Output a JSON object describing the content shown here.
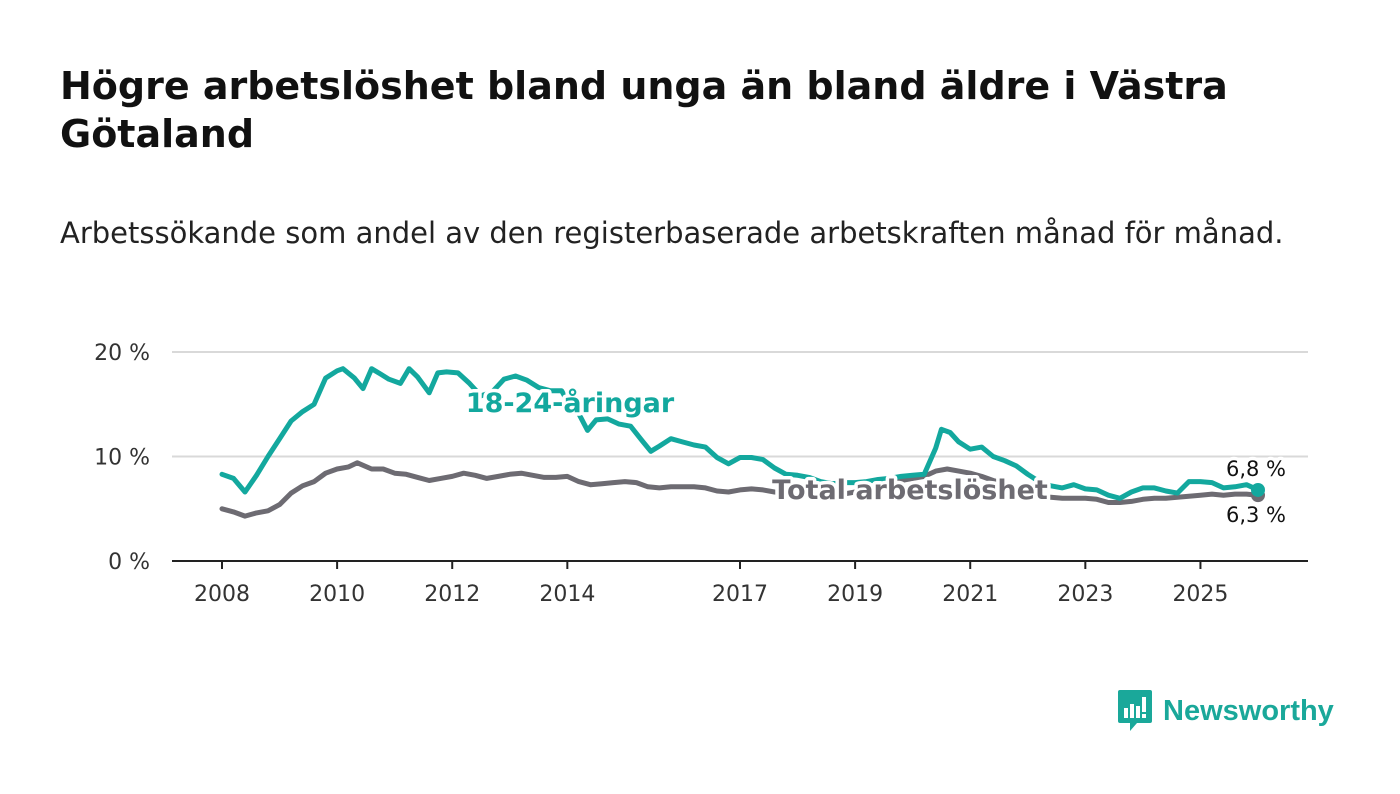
{
  "header": {
    "title": "Högre arbetslöshet bland unga än bland äldre i Västra Götaland",
    "subtitle": "Arbetssökande som andel av den registerbaserade arbetskraften månad för månad."
  },
  "brand": {
    "name": "Newsworthy",
    "icon": "bar-chart-speech-bubble-icon"
  },
  "colors": {
    "youth": "#13a89e",
    "total": "#6d6b72",
    "grid": "#d9d9d9",
    "axis": "#222222",
    "brand": "#1aa89a"
  },
  "chart_data": {
    "type": "line",
    "title": "Högre arbetslöshet bland unga än bland äldre i Västra Götaland",
    "subtitle": "Arbetssökande som andel av den registerbaserade arbetskraften månad för månad.",
    "xlabel": "",
    "ylabel": "",
    "x_range": [
      2008.0,
      2026.0
    ],
    "y_range": [
      0,
      20
    ],
    "y_ticks": [
      0,
      10,
      20
    ],
    "y_tick_labels": [
      "0 %",
      "10 %",
      "20 %"
    ],
    "x_ticks": [
      2008,
      2010,
      2012,
      2014,
      2017,
      2019,
      2021,
      2023,
      2025
    ],
    "x_tick_labels": [
      "2008",
      "2010",
      "2012",
      "2014",
      "2017",
      "2019",
      "2021",
      "2023",
      "2025"
    ],
    "grid": true,
    "series": [
      {
        "name": "18-24-åringar",
        "label": "18-24-åringar",
        "end_label": "6,8 %",
        "points": [
          [
            2008.0,
            8.3
          ],
          [
            2008.2,
            7.9
          ],
          [
            2008.4,
            6.6
          ],
          [
            2008.6,
            8.2
          ],
          [
            2008.8,
            10.0
          ],
          [
            2009.0,
            11.7
          ],
          [
            2009.2,
            13.4
          ],
          [
            2009.4,
            14.3
          ],
          [
            2009.6,
            15.0
          ],
          [
            2009.8,
            17.5
          ],
          [
            2010.0,
            18.2
          ],
          [
            2010.1,
            18.4
          ],
          [
            2010.3,
            17.5
          ],
          [
            2010.45,
            16.5
          ],
          [
            2010.6,
            18.4
          ],
          [
            2010.75,
            17.9
          ],
          [
            2010.9,
            17.4
          ],
          [
            2011.1,
            17.0
          ],
          [
            2011.25,
            18.4
          ],
          [
            2011.4,
            17.6
          ],
          [
            2011.6,
            16.1
          ],
          [
            2011.75,
            18.0
          ],
          [
            2011.9,
            18.1
          ],
          [
            2012.1,
            18.0
          ],
          [
            2012.3,
            17.0
          ],
          [
            2012.5,
            15.8
          ],
          [
            2012.7,
            16.2
          ],
          [
            2012.9,
            17.4
          ],
          [
            2013.1,
            17.7
          ],
          [
            2013.3,
            17.3
          ],
          [
            2013.5,
            16.6
          ],
          [
            2013.7,
            16.3
          ],
          [
            2013.9,
            16.3
          ],
          [
            2014.0,
            15.3
          ],
          [
            2014.2,
            14.1
          ],
          [
            2014.35,
            12.5
          ],
          [
            2014.5,
            13.5
          ],
          [
            2014.7,
            13.6
          ],
          [
            2014.9,
            13.1
          ],
          [
            2015.1,
            12.9
          ],
          [
            2015.3,
            11.5
          ],
          [
            2015.45,
            10.5
          ],
          [
            2015.6,
            11.0
          ],
          [
            2015.8,
            11.7
          ],
          [
            2016.0,
            11.4
          ],
          [
            2016.2,
            11.1
          ],
          [
            2016.4,
            10.9
          ],
          [
            2016.6,
            9.9
          ],
          [
            2016.8,
            9.3
          ],
          [
            2017.0,
            9.9
          ],
          [
            2017.2,
            9.9
          ],
          [
            2017.4,
            9.7
          ],
          [
            2017.6,
            8.9
          ],
          [
            2017.8,
            8.3
          ],
          [
            2018.0,
            8.2
          ],
          [
            2018.2,
            8.0
          ],
          [
            2018.4,
            7.6
          ],
          [
            2018.6,
            7.4
          ],
          [
            2018.8,
            7.5
          ],
          [
            2019.0,
            7.5
          ],
          [
            2019.2,
            7.6
          ],
          [
            2019.4,
            7.8
          ],
          [
            2019.6,
            7.9
          ],
          [
            2019.8,
            8.1
          ],
          [
            2020.0,
            8.2
          ],
          [
            2020.2,
            8.3
          ],
          [
            2020.4,
            10.8
          ],
          [
            2020.5,
            12.6
          ],
          [
            2020.65,
            12.3
          ],
          [
            2020.8,
            11.4
          ],
          [
            2021.0,
            10.7
          ],
          [
            2021.2,
            10.9
          ],
          [
            2021.4,
            10.0
          ],
          [
            2021.6,
            9.6
          ],
          [
            2021.8,
            9.1
          ],
          [
            2022.0,
            8.3
          ],
          [
            2022.2,
            7.6
          ],
          [
            2022.4,
            7.2
          ],
          [
            2022.6,
            7.0
          ],
          [
            2022.8,
            7.3
          ],
          [
            2023.0,
            6.9
          ],
          [
            2023.2,
            6.8
          ],
          [
            2023.4,
            6.3
          ],
          [
            2023.6,
            6.0
          ],
          [
            2023.8,
            6.6
          ],
          [
            2024.0,
            7.0
          ],
          [
            2024.2,
            7.0
          ],
          [
            2024.4,
            6.7
          ],
          [
            2024.6,
            6.5
          ],
          [
            2024.8,
            7.6
          ],
          [
            2025.0,
            7.6
          ],
          [
            2025.2,
            7.5
          ],
          [
            2025.4,
            7.0
          ],
          [
            2025.6,
            7.1
          ],
          [
            2025.8,
            7.3
          ],
          [
            2026.0,
            6.8
          ]
        ]
      },
      {
        "name": "Total arbetslöshet",
        "label": "Total arbetslöshet",
        "end_label": "6,3 %",
        "points": [
          [
            2008.0,
            5.0
          ],
          [
            2008.2,
            4.7
          ],
          [
            2008.4,
            4.3
          ],
          [
            2008.6,
            4.6
          ],
          [
            2008.8,
            4.8
          ],
          [
            2009.0,
            5.4
          ],
          [
            2009.2,
            6.5
          ],
          [
            2009.4,
            7.2
          ],
          [
            2009.6,
            7.6
          ],
          [
            2009.8,
            8.4
          ],
          [
            2010.0,
            8.8
          ],
          [
            2010.2,
            9.0
          ],
          [
            2010.35,
            9.4
          ],
          [
            2010.6,
            8.8
          ],
          [
            2010.8,
            8.8
          ],
          [
            2011.0,
            8.4
          ],
          [
            2011.2,
            8.3
          ],
          [
            2011.4,
            8.0
          ],
          [
            2011.6,
            7.7
          ],
          [
            2011.8,
            7.9
          ],
          [
            2012.0,
            8.1
          ],
          [
            2012.2,
            8.4
          ],
          [
            2012.4,
            8.2
          ],
          [
            2012.6,
            7.9
          ],
          [
            2012.8,
            8.1
          ],
          [
            2013.0,
            8.3
          ],
          [
            2013.2,
            8.4
          ],
          [
            2013.4,
            8.2
          ],
          [
            2013.6,
            8.0
          ],
          [
            2013.8,
            8.0
          ],
          [
            2014.0,
            8.1
          ],
          [
            2014.2,
            7.6
          ],
          [
            2014.4,
            7.3
          ],
          [
            2014.6,
            7.4
          ],
          [
            2014.8,
            7.5
          ],
          [
            2015.0,
            7.6
          ],
          [
            2015.2,
            7.5
          ],
          [
            2015.4,
            7.1
          ],
          [
            2015.6,
            7.0
          ],
          [
            2015.8,
            7.1
          ],
          [
            2016.0,
            7.1
          ],
          [
            2016.2,
            7.1
          ],
          [
            2016.4,
            7.0
          ],
          [
            2016.6,
            6.7
          ],
          [
            2016.8,
            6.6
          ],
          [
            2017.0,
            6.8
          ],
          [
            2017.2,
            6.9
          ],
          [
            2017.4,
            6.8
          ],
          [
            2017.6,
            6.6
          ],
          [
            2017.8,
            6.5
          ],
          [
            2018.0,
            6.5
          ],
          [
            2018.2,
            6.4
          ],
          [
            2018.4,
            6.3
          ],
          [
            2018.6,
            6.3
          ],
          [
            2018.8,
            6.4
          ],
          [
            2019.0,
            6.6
          ],
          [
            2019.2,
            6.8
          ],
          [
            2019.4,
            7.1
          ],
          [
            2019.6,
            7.4
          ],
          [
            2019.8,
            7.7
          ],
          [
            2020.0,
            7.9
          ],
          [
            2020.2,
            8.1
          ],
          [
            2020.4,
            8.6
          ],
          [
            2020.6,
            8.8
          ],
          [
            2020.8,
            8.6
          ],
          [
            2021.0,
            8.4
          ],
          [
            2021.2,
            8.1
          ],
          [
            2021.4,
            7.7
          ],
          [
            2021.6,
            7.4
          ],
          [
            2021.8,
            7.0
          ],
          [
            2022.0,
            6.6
          ],
          [
            2022.2,
            6.3
          ],
          [
            2022.4,
            6.1
          ],
          [
            2022.6,
            6.0
          ],
          [
            2022.8,
            6.0
          ],
          [
            2023.0,
            6.0
          ],
          [
            2023.2,
            5.9
          ],
          [
            2023.4,
            5.6
          ],
          [
            2023.6,
            5.6
          ],
          [
            2023.8,
            5.7
          ],
          [
            2024.0,
            5.9
          ],
          [
            2024.2,
            6.0
          ],
          [
            2024.4,
            6.0
          ],
          [
            2024.6,
            6.1
          ],
          [
            2024.8,
            6.2
          ],
          [
            2025.0,
            6.3
          ],
          [
            2025.2,
            6.4
          ],
          [
            2025.4,
            6.3
          ],
          [
            2025.6,
            6.4
          ],
          [
            2025.8,
            6.4
          ],
          [
            2026.0,
            6.3
          ]
        ]
      }
    ]
  }
}
